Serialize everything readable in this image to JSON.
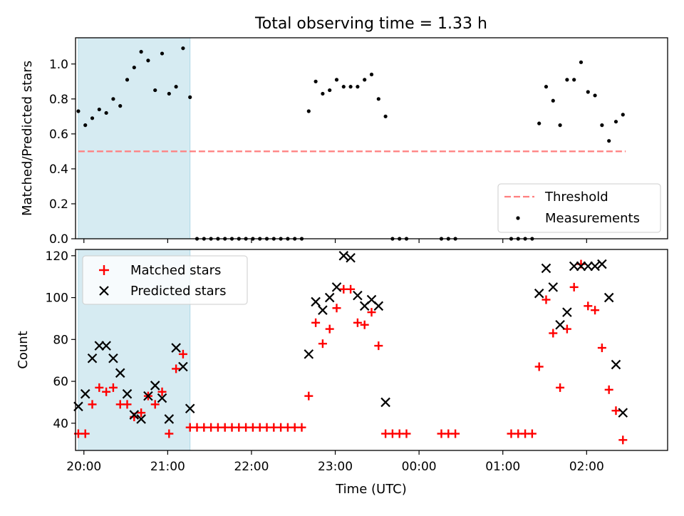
{
  "title": "Total observing time = 1.33 h",
  "colors": {
    "threshold": "#ff7f7f",
    "measurement": "#000000",
    "matched": "#ff0000",
    "predicted": "#000000",
    "shade": "#add8e6"
  },
  "chart_data": [
    {
      "type": "scatter",
      "ylabel": "Matched/Predicted stars",
      "ylim": [
        0,
        1.15
      ],
      "xlim": [
        "19:54",
        "02:58"
      ],
      "yticks": [
        "0.0",
        "0.2",
        "0.4",
        "0.6",
        "0.8",
        "1.0"
      ],
      "shaded_interval": [
        "19:56",
        "21:16"
      ],
      "legend_position": "lower-right",
      "threshold": {
        "name": "Threshold",
        "value": 0.5,
        "x_start": "19:56",
        "x_end": "02:28"
      },
      "series": [
        {
          "name": "Measurements",
          "points": [
            [
              "19:56",
              0.73
            ],
            [
              "20:01",
              0.65
            ],
            [
              "20:06",
              0.69
            ],
            [
              "20:11",
              0.74
            ],
            [
              "20:16",
              0.72
            ],
            [
              "20:21",
              0.8
            ],
            [
              "20:26",
              0.76
            ],
            [
              "20:31",
              0.91
            ],
            [
              "20:36",
              0.98
            ],
            [
              "20:41",
              1.07
            ],
            [
              "20:46",
              1.02
            ],
            [
              "20:51",
              0.85
            ],
            [
              "20:56",
              1.06
            ],
            [
              "21:01",
              0.83
            ],
            [
              "21:06",
              0.87
            ],
            [
              "21:11",
              1.09
            ],
            [
              "21:16",
              0.81
            ],
            [
              "21:21",
              0
            ],
            [
              "21:26",
              0
            ],
            [
              "21:31",
              0
            ],
            [
              "21:36",
              0
            ],
            [
              "21:41",
              0
            ],
            [
              "21:46",
              0
            ],
            [
              "21:51",
              0
            ],
            [
              "21:56",
              0
            ],
            [
              "22:01",
              0
            ],
            [
              "22:06",
              0
            ],
            [
              "22:11",
              0
            ],
            [
              "22:16",
              0
            ],
            [
              "22:21",
              0
            ],
            [
              "22:26",
              0
            ],
            [
              "22:31",
              0
            ],
            [
              "22:36",
              0
            ],
            [
              "22:41",
              0.73
            ],
            [
              "22:46",
              0.9
            ],
            [
              "22:51",
              0.83
            ],
            [
              "22:56",
              0.85
            ],
            [
              "23:01",
              0.91
            ],
            [
              "23:06",
              0.87
            ],
            [
              "23:11",
              0.87
            ],
            [
              "23:16",
              0.87
            ],
            [
              "23:21",
              0.91
            ],
            [
              "23:26",
              0.94
            ],
            [
              "23:31",
              0.8
            ],
            [
              "23:36",
              0.7
            ],
            [
              "23:41",
              0
            ],
            [
              "23:46",
              0
            ],
            [
              "23:51",
              0
            ],
            [
              "00:16",
              0
            ],
            [
              "00:21",
              0
            ],
            [
              "00:26",
              0
            ],
            [
              "01:06",
              0
            ],
            [
              "01:11",
              0
            ],
            [
              "01:16",
              0
            ],
            [
              "01:21",
              0
            ],
            [
              "01:26",
              0.66
            ],
            [
              "01:31",
              0.87
            ],
            [
              "01:36",
              0.79
            ],
            [
              "01:41",
              0.65
            ],
            [
              "01:46",
              0.91
            ],
            [
              "01:51",
              0.91
            ],
            [
              "01:56",
              1.01
            ],
            [
              "02:01",
              0.84
            ],
            [
              "02:06",
              0.82
            ],
            [
              "02:11",
              0.65
            ],
            [
              "02:16",
              0.56
            ],
            [
              "02:21",
              0.67
            ],
            [
              "02:26",
              0.71
            ]
          ]
        }
      ]
    },
    {
      "type": "scatter",
      "xlabel": "Time (UTC)",
      "ylabel": "Count",
      "ylim": [
        27,
        123
      ],
      "xlim": [
        "19:54",
        "02:58"
      ],
      "xticks": [
        "20:00",
        "21:00",
        "22:00",
        "23:00",
        "00:00",
        "01:00",
        "02:00"
      ],
      "yticks": [
        "40",
        "60",
        "80",
        "100",
        "120"
      ],
      "shaded_interval": [
        "19:56",
        "21:16"
      ],
      "legend_position": "upper-left",
      "series": [
        {
          "name": "Matched stars",
          "marker": "plus",
          "points": [
            [
              "19:56",
              35
            ],
            [
              "20:01",
              35
            ],
            [
              "20:06",
              49
            ],
            [
              "20:11",
              57
            ],
            [
              "20:16",
              55
            ],
            [
              "20:21",
              57
            ],
            [
              "20:26",
              49
            ],
            [
              "20:31",
              49
            ],
            [
              "20:36",
              43
            ],
            [
              "20:41",
              45
            ],
            [
              "20:46",
              53
            ],
            [
              "20:51",
              49
            ],
            [
              "20:56",
              55
            ],
            [
              "21:01",
              35
            ],
            [
              "21:06",
              66
            ],
            [
              "21:11",
              73
            ],
            [
              "21:16",
              38
            ],
            [
              "21:21",
              38
            ],
            [
              "21:26",
              38
            ],
            [
              "21:31",
              38
            ],
            [
              "21:36",
              38
            ],
            [
              "21:41",
              38
            ],
            [
              "21:46",
              38
            ],
            [
              "21:51",
              38
            ],
            [
              "21:56",
              38
            ],
            [
              "22:01",
              38
            ],
            [
              "22:06",
              38
            ],
            [
              "22:11",
              38
            ],
            [
              "22:16",
              38
            ],
            [
              "22:21",
              38
            ],
            [
              "22:26",
              38
            ],
            [
              "22:31",
              38
            ],
            [
              "22:36",
              38
            ],
            [
              "22:41",
              53
            ],
            [
              "22:46",
              88
            ],
            [
              "22:51",
              78
            ],
            [
              "22:56",
              85
            ],
            [
              "23:01",
              95
            ],
            [
              "23:06",
              104
            ],
            [
              "23:11",
              104
            ],
            [
              "23:16",
              88
            ],
            [
              "23:21",
              87
            ],
            [
              "23:26",
              93
            ],
            [
              "23:31",
              77
            ],
            [
              "23:36",
              35
            ],
            [
              "23:41",
              35
            ],
            [
              "23:46",
              35
            ],
            [
              "23:51",
              35
            ],
            [
              "00:16",
              35
            ],
            [
              "00:21",
              35
            ],
            [
              "00:26",
              35
            ],
            [
              "01:06",
              35
            ],
            [
              "01:11",
              35
            ],
            [
              "01:16",
              35
            ],
            [
              "01:21",
              35
            ],
            [
              "01:26",
              67
            ],
            [
              "01:31",
              99
            ],
            [
              "01:36",
              83
            ],
            [
              "01:41",
              57
            ],
            [
              "01:46",
              85
            ],
            [
              "01:51",
              105
            ],
            [
              "01:56",
              116
            ],
            [
              "02:01",
              96
            ],
            [
              "02:06",
              94
            ],
            [
              "02:11",
              76
            ],
            [
              "02:16",
              56
            ],
            [
              "02:21",
              46
            ],
            [
              "02:26",
              32
            ]
          ]
        },
        {
          "name": "Predicted stars",
          "marker": "x",
          "points": [
            [
              "19:56",
              48
            ],
            [
              "20:01",
              54
            ],
            [
              "20:06",
              71
            ],
            [
              "20:11",
              77
            ],
            [
              "20:16",
              77
            ],
            [
              "20:21",
              71
            ],
            [
              "20:26",
              64
            ],
            [
              "20:31",
              54
            ],
            [
              "20:36",
              44
            ],
            [
              "20:41",
              42
            ],
            [
              "20:46",
              53
            ],
            [
              "20:51",
              58
            ],
            [
              "20:56",
              52
            ],
            [
              "21:01",
              42
            ],
            [
              "21:06",
              76
            ],
            [
              "21:11",
              67
            ],
            [
              "21:16",
              47
            ],
            [
              "22:41",
              73
            ],
            [
              "22:46",
              98
            ],
            [
              "22:51",
              94
            ],
            [
              "22:56",
              100
            ],
            [
              "23:01",
              105
            ],
            [
              "23:06",
              120
            ],
            [
              "23:11",
              119
            ],
            [
              "23:16",
              101
            ],
            [
              "23:21",
              96
            ],
            [
              "23:26",
              99
            ],
            [
              "23:31",
              96
            ],
            [
              "23:36",
              50
            ],
            [
              "01:26",
              102
            ],
            [
              "01:31",
              114
            ],
            [
              "01:36",
              105
            ],
            [
              "01:41",
              87
            ],
            [
              "01:46",
              93
            ],
            [
              "01:51",
              115
            ],
            [
              "01:56",
              115
            ],
            [
              "02:01",
              115
            ],
            [
              "02:06",
              115
            ],
            [
              "02:11",
              116
            ],
            [
              "02:16",
              100
            ],
            [
              "02:21",
              68
            ],
            [
              "02:26",
              45
            ]
          ]
        }
      ]
    }
  ]
}
